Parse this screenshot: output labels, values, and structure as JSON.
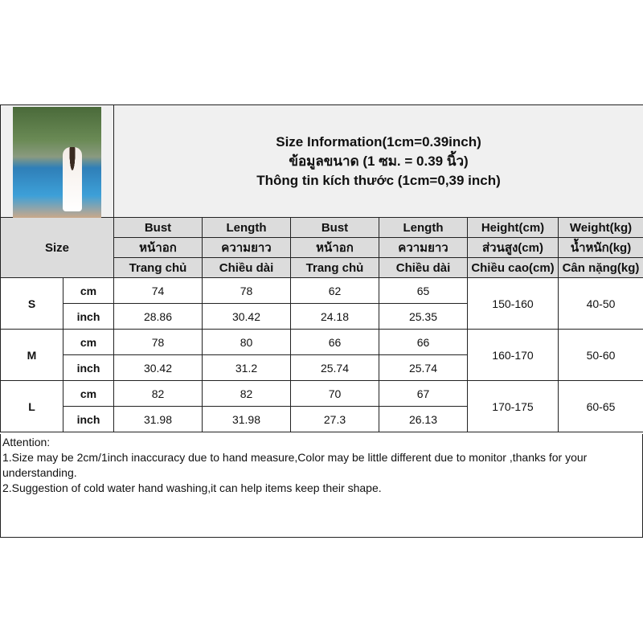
{
  "title": {
    "en": "Size Information(1cm=0.39inch)",
    "th": "ข้อมูลขนาด (1 ซม. = 0.39 นิ้ว)",
    "vi": "Thông tin kích thước (1cm=0,39 inch)"
  },
  "size_label": "Size",
  "columns": [
    {
      "en": "Bust",
      "th": "หน้าอก",
      "vi": "Trang chủ"
    },
    {
      "en": "Length",
      "th": "ความยาว",
      "vi": "Chiều dài"
    },
    {
      "en": "Bust",
      "th": "หน้าอก",
      "vi": "Trang chủ"
    },
    {
      "en": "Length",
      "th": "ความยาว",
      "vi": "Chiều dài"
    },
    {
      "en": "Height(cm)",
      "th": "ส่วนสูง(cm)",
      "vi": "Chiều cao(cm)"
    },
    {
      "en": "Weight(kg)",
      "th": "น้ำหนัก(kg)",
      "vi": "Cân nặng(kg)"
    }
  ],
  "rows": [
    {
      "size": "S",
      "cm": [
        "74",
        "78",
        "62",
        "65"
      ],
      "inch": [
        "28.86",
        "30.42",
        "24.18",
        "25.35"
      ],
      "height": "150-160",
      "weight": "40-50"
    },
    {
      "size": "M",
      "cm": [
        "78",
        "80",
        "66",
        "66"
      ],
      "inch": [
        "30.42",
        "31.2",
        "25.74",
        "25.74"
      ],
      "height": "160-170",
      "weight": "50-60"
    },
    {
      "size": "L",
      "cm": [
        "82",
        "82",
        "70",
        "67"
      ],
      "inch": [
        "31.98",
        "31.98",
        "27.3",
        "26.13"
      ],
      "height": "170-175",
      "weight": "60-65"
    }
  ],
  "unit_cm": "cm",
  "unit_inch": "inch",
  "attention": {
    "heading": "Attention:",
    "lines": [
      "1.Size may be 2cm/1inch inaccuracy due to hand measure,Color may be little different due to monitor ,thanks for your understanding.",
      "2.Suggestion of cold water hand washing,it can help items keep their shape."
    ]
  }
}
